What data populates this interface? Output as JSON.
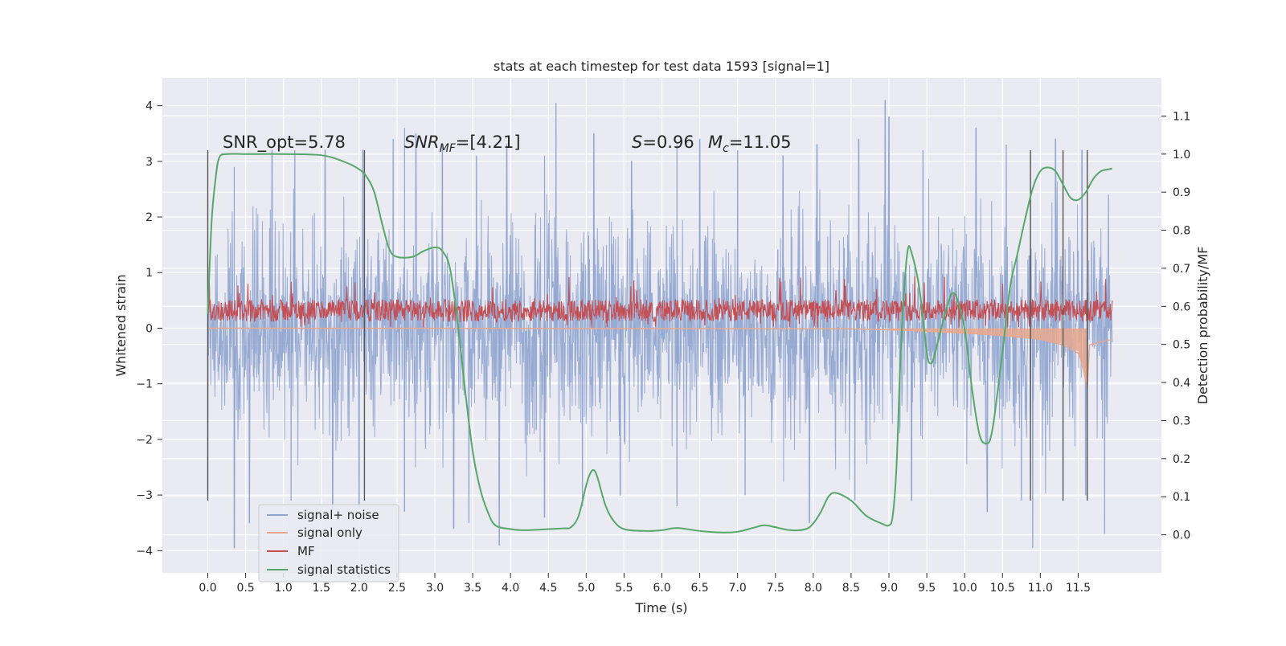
{
  "chart_data": {
    "type": "line",
    "title": "stats at each timestep for test data 1593 [signal=1]",
    "xlabel": "Time (s)",
    "ylabel": "Whitened strain",
    "y2label": "Detection probability/MF",
    "xlim": [
      -0.6,
      12.6
    ],
    "ylim": [
      -4.4,
      4.5
    ],
    "y2lim": [
      -0.1,
      1.2
    ],
    "xticks": [
      0.0,
      0.5,
      1.0,
      1.5,
      2.0,
      2.5,
      3.0,
      3.5,
      4.0,
      4.5,
      5.0,
      5.5,
      6.0,
      6.5,
      7.0,
      7.5,
      8.0,
      8.5,
      9.0,
      9.5,
      10.0,
      10.5,
      11.0,
      11.5
    ],
    "xtick_labels": [
      "0.0",
      "0.5",
      "1.0",
      "1.5",
      "2.0",
      "2.5",
      "3.0",
      "3.5",
      "4.0",
      "4.5",
      "5.0",
      "5.5",
      "6.0",
      "6.5",
      "7.0",
      "7.5",
      "8.0",
      "8.5",
      "9.0",
      "9.5",
      "10.0",
      "10.5",
      "11.0",
      "11.5"
    ],
    "yticks": [
      -4,
      -3,
      -2,
      -1,
      0,
      1,
      2,
      3,
      4
    ],
    "ytick_labels": [
      "−4",
      "−3",
      "−2",
      "−1",
      "0",
      "1",
      "2",
      "3",
      "4"
    ],
    "y2ticks": [
      0.0,
      0.1,
      0.2,
      0.3,
      0.4,
      0.5,
      0.6,
      0.7,
      0.8,
      0.9,
      1.0,
      1.1
    ],
    "y2tick_labels": [
      "0.0",
      "0.1",
      "0.2",
      "0.3",
      "0.4",
      "0.5",
      "0.6",
      "0.7",
      "0.8",
      "0.9",
      "1.0",
      "1.1"
    ],
    "grid": true,
    "legend_placement": "lower-left",
    "annotations": {
      "snr_opt": "SNR_opt=5.78",
      "snr_mf_main": "SNR",
      "snr_mf_sub": "MF",
      "snr_mf_val": "=[4.21]",
      "s_main": "S",
      "s_val": "=0.96",
      "mc_main": "M",
      "mc_sub": "c",
      "mc_val": "=11.05"
    },
    "vertical_lines_x": [
      0.0,
      2.07,
      10.87,
      11.3,
      11.62
    ],
    "vertical_lines_range": [
      -3.1,
      3.2
    ],
    "series": [
      {
        "name": "signal+ noise",
        "color": "#8fa4cf",
        "axis": "left",
        "t_range": [
          0.0,
          11.95
        ],
        "envelope": {
          "upper_typical": 2.0,
          "upper_spikes": [
            [
              0.0,
              2.3
            ],
            [
              0.35,
              2.9
            ],
            [
              0.85,
              3.2
            ],
            [
              1.15,
              3.2
            ],
            [
              1.55,
              3.2
            ],
            [
              2.05,
              3.2
            ],
            [
              2.45,
              3.4
            ],
            [
              2.6,
              3.6
            ],
            [
              2.75,
              3.5
            ],
            [
              3.1,
              3.3
            ],
            [
              3.55,
              3.1
            ],
            [
              3.95,
              3.3
            ],
            [
              4.45,
              3.1
            ],
            [
              4.6,
              4.05
            ],
            [
              5.1,
              3.5
            ],
            [
              5.6,
              3.0
            ],
            [
              6.2,
              3.3
            ],
            [
              6.5,
              3.4
            ],
            [
              7.0,
              3.2
            ],
            [
              7.6,
              3.1
            ],
            [
              8.05,
              3.3
            ],
            [
              8.6,
              3.4
            ],
            [
              8.95,
              4.1
            ],
            [
              9.0,
              3.8
            ],
            [
              9.45,
              3.2
            ],
            [
              10.15,
              3.6
            ],
            [
              10.55,
              3.3
            ],
            [
              11.2,
              3.4
            ],
            [
              11.55,
              3.2
            ],
            [
              11.9,
              2.4
            ]
          ],
          "lower_typical": -2.0,
          "lower_spikes": [
            [
              0.0,
              -3.0
            ],
            [
              0.35,
              -3.95
            ],
            [
              0.55,
              -3.5
            ],
            [
              1.1,
              -3.1
            ],
            [
              1.65,
              -3.3
            ],
            [
              2.0,
              -3.2
            ],
            [
              2.6,
              -3.3
            ],
            [
              3.25,
              -3.6
            ],
            [
              3.45,
              -3.5
            ],
            [
              3.85,
              -3.9
            ],
            [
              4.45,
              -3.4
            ],
            [
              4.95,
              -3.2
            ],
            [
              5.45,
              -3.0
            ],
            [
              6.2,
              -3.2
            ],
            [
              7.1,
              -3.0
            ],
            [
              7.95,
              -3.5
            ],
            [
              8.55,
              -3.1
            ],
            [
              9.3,
              -3.1
            ],
            [
              10.3,
              -3.3
            ],
            [
              10.75,
              -3.1
            ],
            [
              10.9,
              -3.95
            ],
            [
              11.6,
              -3.0
            ],
            [
              11.85,
              -3.7
            ]
          ]
        }
      },
      {
        "name": "signal only",
        "color": "#e8a88e",
        "axis": "left",
        "points": [
          [
            0.0,
            0.0
          ],
          [
            8.5,
            -0.01
          ],
          [
            9.0,
            -0.03
          ],
          [
            9.5,
            -0.05
          ],
          [
            10.0,
            -0.08
          ],
          [
            10.5,
            -0.13
          ],
          [
            11.0,
            -0.2
          ],
          [
            11.3,
            -0.3
          ],
          [
            11.5,
            -0.45
          ],
          [
            11.6,
            -0.7
          ],
          [
            11.62,
            -1.1
          ],
          [
            11.65,
            -0.3
          ],
          [
            11.95,
            -0.2
          ]
        ],
        "band_lower": [
          [
            9.0,
            -0.03
          ],
          [
            10.0,
            -0.1
          ],
          [
            10.5,
            -0.14
          ],
          [
            11.0,
            -0.2
          ],
          [
            11.3,
            -0.28
          ],
          [
            11.5,
            -0.42
          ],
          [
            11.62,
            -1.1
          ]
        ]
      },
      {
        "name": "MF",
        "color": "#c44e52",
        "axis": "left",
        "t_range": [
          0.0,
          11.95
        ],
        "band": {
          "center": 0.32,
          "half_width": 0.2,
          "spike_max": 0.95
        }
      },
      {
        "name": "signal statistics",
        "color": "#55a868",
        "axis": "right",
        "x": [
          0.0,
          0.05,
          0.1,
          0.15,
          0.25,
          0.5,
          1.0,
          1.5,
          1.8,
          2.0,
          2.1,
          2.2,
          2.3,
          2.4,
          2.5,
          2.7,
          2.85,
          3.0,
          3.1,
          3.2,
          3.3,
          3.4,
          3.5,
          3.6,
          3.7,
          3.8,
          4.0,
          4.2,
          4.5,
          4.7,
          4.8,
          4.9,
          5.0,
          5.05,
          5.1,
          5.15,
          5.25,
          5.35,
          5.5,
          5.8,
          6.0,
          6.2,
          6.5,
          6.8,
          7.0,
          7.2,
          7.35,
          7.5,
          7.7,
          7.9,
          8.0,
          8.1,
          8.2,
          8.3,
          8.5,
          8.7,
          8.9,
          9.0,
          9.05,
          9.1,
          9.15,
          9.2,
          9.25,
          9.3,
          9.4,
          9.5,
          9.55,
          9.6,
          9.7,
          9.8,
          9.85,
          9.9,
          10.0,
          10.1,
          10.2,
          10.3,
          10.35,
          10.4,
          10.5,
          10.6,
          10.7,
          10.8,
          10.9,
          11.0,
          11.1,
          11.2,
          11.3,
          11.4,
          11.5,
          11.6,
          11.7,
          11.8,
          11.9,
          11.95
        ],
        "values": [
          0.58,
          0.82,
          0.93,
          0.99,
          1.0,
          1.0,
          1.0,
          0.997,
          0.98,
          0.96,
          0.94,
          0.9,
          0.82,
          0.75,
          0.73,
          0.73,
          0.745,
          0.755,
          0.745,
          0.7,
          0.56,
          0.38,
          0.22,
          0.12,
          0.06,
          0.025,
          0.015,
          0.012,
          0.015,
          0.017,
          0.02,
          0.05,
          0.13,
          0.16,
          0.17,
          0.15,
          0.08,
          0.04,
          0.015,
          0.01,
          0.012,
          0.018,
          0.01,
          0.006,
          0.008,
          0.018,
          0.025,
          0.02,
          0.012,
          0.015,
          0.03,
          0.06,
          0.1,
          0.11,
          0.09,
          0.05,
          0.03,
          0.025,
          0.05,
          0.18,
          0.45,
          0.64,
          0.75,
          0.74,
          0.65,
          0.48,
          0.45,
          0.47,
          0.55,
          0.62,
          0.635,
          0.62,
          0.54,
          0.38,
          0.26,
          0.24,
          0.26,
          0.32,
          0.48,
          0.65,
          0.74,
          0.83,
          0.91,
          0.955,
          0.965,
          0.955,
          0.92,
          0.885,
          0.88,
          0.9,
          0.935,
          0.955,
          0.96,
          0.962
        ]
      }
    ]
  }
}
